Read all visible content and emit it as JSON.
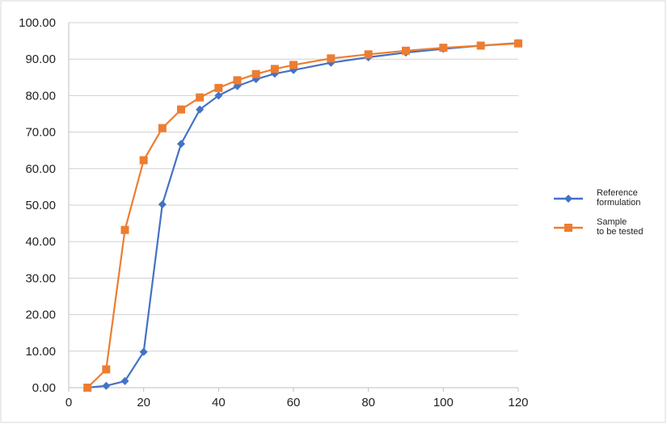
{
  "chart_data": {
    "type": "line",
    "title": "",
    "xlabel": "",
    "ylabel": "",
    "xlim": [
      0,
      120
    ],
    "ylim": [
      0,
      100
    ],
    "x_ticks": [
      0,
      20,
      40,
      60,
      80,
      100,
      120
    ],
    "y_ticks": [
      0,
      10,
      20,
      30,
      40,
      50,
      60,
      70,
      80,
      90,
      100
    ],
    "y_tick_labels": [
      "0.00",
      "10.00",
      "20.00",
      "30.00",
      "40.00",
      "50.00",
      "60.00",
      "70.00",
      "80.00",
      "90.00",
      "100.00"
    ],
    "x_tick_labels": [
      "0",
      "20",
      "40",
      "60",
      "80",
      "100",
      "120"
    ],
    "grid": "horizontal",
    "legend_position": "right",
    "series": [
      {
        "name": "Reference formulation",
        "color": "#4472c4",
        "marker": "diamond",
        "x": [
          5,
          10,
          15,
          20,
          25,
          30,
          35,
          40,
          45,
          50,
          55,
          60,
          70,
          80,
          90,
          100,
          110,
          120
        ],
        "y": [
          0.0,
          0.5,
          1.8,
          9.8,
          50.2,
          66.8,
          76.2,
          80.0,
          82.6,
          84.5,
          86.0,
          87.0,
          89.0,
          90.5,
          91.8,
          92.8,
          93.7,
          94.4
        ]
      },
      {
        "name": "Sample to be tested",
        "color": "#ed7d31",
        "marker": "square",
        "x": [
          5,
          10,
          15,
          20,
          25,
          30,
          35,
          40,
          45,
          50,
          55,
          60,
          70,
          80,
          90,
          100,
          110,
          120
        ],
        "y": [
          0.0,
          5.0,
          43.2,
          62.3,
          71.1,
          76.2,
          79.5,
          82.1,
          84.2,
          85.9,
          87.3,
          88.4,
          90.2,
          91.3,
          92.3,
          93.1,
          93.7,
          94.3
        ]
      }
    ],
    "legend_labels": [
      "Reference\nformulation",
      "Sample\nto be tested"
    ]
  }
}
